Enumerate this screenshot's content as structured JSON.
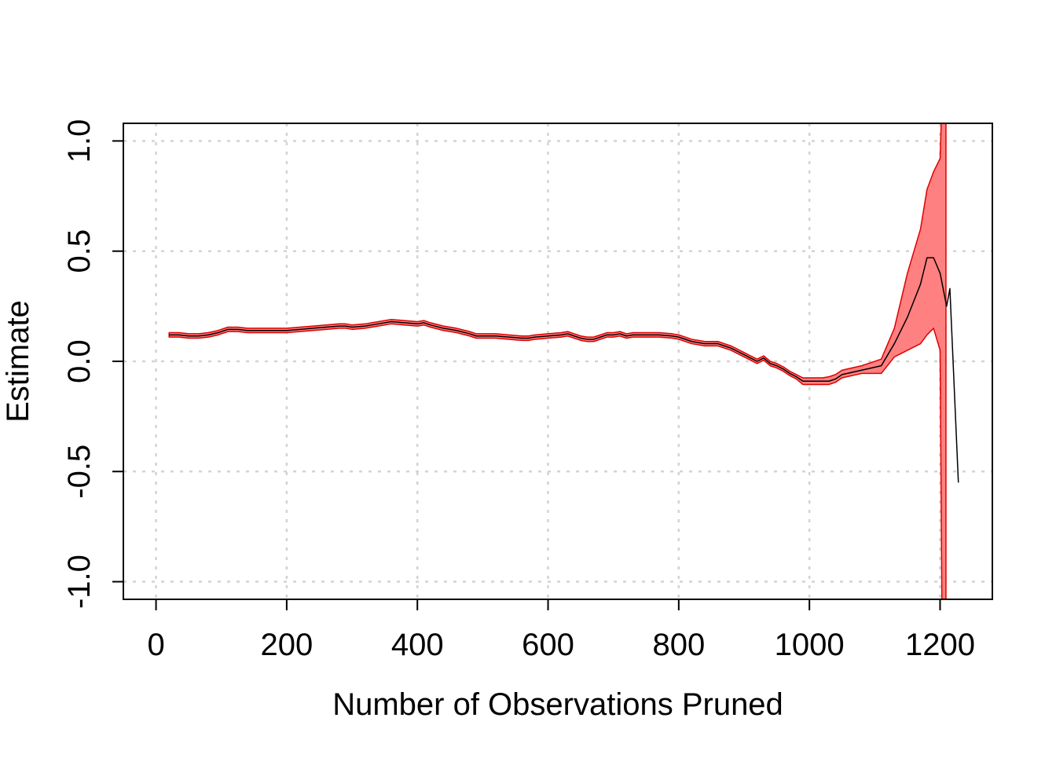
{
  "chart_data": {
    "type": "line",
    "title": "",
    "xlabel": "Number of Observations Pruned",
    "ylabel": "Estimate",
    "xlim": [
      -50,
      1280
    ],
    "ylim": [
      -1.08,
      1.08
    ],
    "x_ticks": [
      0,
      200,
      400,
      600,
      800,
      1000,
      1200
    ],
    "x_tick_labels": [
      "0",
      "200",
      "400",
      "600",
      "800",
      "1000",
      "1200"
    ],
    "y_ticks": [
      -1.0,
      -0.5,
      0.0,
      0.5,
      1.0
    ],
    "y_tick_labels": [
      "-1.0",
      "-0.5",
      "0.0",
      "0.5",
      "1.0"
    ],
    "grid": true,
    "colors": {
      "band": "#ff8080",
      "band_edge": "#e00000",
      "line": "#000000"
    },
    "series": [
      {
        "x": [
          20,
          35,
          50,
          65,
          80,
          95,
          110,
          125,
          140,
          160,
          180,
          200,
          220,
          240,
          260,
          280,
          290,
          300,
          320,
          340,
          360,
          380,
          400,
          410,
          420,
          440,
          460,
          480,
          490,
          500,
          520,
          540,
          560,
          570,
          580,
          600,
          620,
          630,
          640,
          650,
          660,
          670,
          680,
          690,
          700,
          710,
          720,
          730,
          750,
          770,
          790,
          800,
          820,
          840,
          860,
          870,
          880,
          890,
          900,
          910,
          920,
          930,
          940,
          950,
          960,
          970,
          980,
          990,
          1000,
          1020,
          1030,
          1040,
          1050,
          1080,
          1110,
          1130,
          1150,
          1170,
          1180,
          1190,
          1200,
          1210,
          1215,
          1228
        ],
        "y": [
          0.12,
          0.12,
          0.115,
          0.115,
          0.12,
          0.13,
          0.145,
          0.145,
          0.14,
          0.14,
          0.14,
          0.14,
          0.145,
          0.15,
          0.155,
          0.16,
          0.16,
          0.155,
          0.16,
          0.17,
          0.18,
          0.175,
          0.17,
          0.175,
          0.165,
          0.15,
          0.14,
          0.125,
          0.115,
          0.115,
          0.115,
          0.11,
          0.105,
          0.105,
          0.11,
          0.115,
          0.12,
          0.125,
          0.115,
          0.105,
          0.1,
          0.1,
          0.11,
          0.12,
          0.12,
          0.125,
          0.115,
          0.12,
          0.12,
          0.12,
          0.115,
          0.11,
          0.09,
          0.08,
          0.08,
          0.07,
          0.06,
          0.045,
          0.03,
          0.015,
          0.0,
          0.015,
          -0.01,
          -0.02,
          -0.035,
          -0.055,
          -0.07,
          -0.09,
          -0.09,
          -0.09,
          -0.09,
          -0.08,
          -0.06,
          -0.04,
          -0.02,
          0.08,
          0.2,
          0.35,
          0.47,
          0.47,
          0.4,
          0.25,
          0.33,
          -0.55
        ]
      }
    ],
    "band": {
      "x": [
        20,
        35,
        50,
        65,
        80,
        95,
        110,
        125,
        140,
        160,
        180,
        200,
        220,
        240,
        260,
        280,
        290,
        300,
        320,
        340,
        360,
        380,
        400,
        410,
        420,
        440,
        460,
        480,
        490,
        500,
        520,
        540,
        560,
        570,
        580,
        600,
        620,
        630,
        640,
        650,
        660,
        670,
        680,
        690,
        700,
        710,
        720,
        730,
        750,
        770,
        790,
        800,
        820,
        840,
        860,
        870,
        880,
        890,
        900,
        910,
        920,
        930,
        940,
        950,
        960,
        970,
        980,
        990,
        1000,
        1020,
        1030,
        1040,
        1050,
        1080,
        1110,
        1130,
        1150,
        1170,
        1180,
        1190,
        1200,
        1203,
        1206,
        1209
      ],
      "upper": [
        0.13,
        0.13,
        0.125,
        0.125,
        0.13,
        0.14,
        0.155,
        0.155,
        0.15,
        0.15,
        0.15,
        0.15,
        0.155,
        0.16,
        0.165,
        0.17,
        0.17,
        0.165,
        0.17,
        0.18,
        0.19,
        0.185,
        0.18,
        0.185,
        0.175,
        0.16,
        0.15,
        0.135,
        0.125,
        0.125,
        0.125,
        0.12,
        0.115,
        0.115,
        0.12,
        0.125,
        0.13,
        0.135,
        0.125,
        0.115,
        0.11,
        0.11,
        0.12,
        0.13,
        0.13,
        0.135,
        0.125,
        0.13,
        0.13,
        0.13,
        0.125,
        0.12,
        0.1,
        0.09,
        0.09,
        0.08,
        0.07,
        0.055,
        0.04,
        0.025,
        0.01,
        0.025,
        0.0,
        -0.01,
        -0.025,
        -0.045,
        -0.06,
        -0.075,
        -0.075,
        -0.075,
        -0.07,
        -0.06,
        -0.04,
        -0.02,
        0.01,
        0.15,
        0.4,
        0.6,
        0.78,
        0.86,
        0.92,
        1.2,
        1.2,
        1.2
      ],
      "lower": [
        0.11,
        0.11,
        0.105,
        0.105,
        0.11,
        0.12,
        0.135,
        0.135,
        0.13,
        0.13,
        0.13,
        0.13,
        0.135,
        0.14,
        0.145,
        0.15,
        0.15,
        0.145,
        0.15,
        0.16,
        0.17,
        0.165,
        0.16,
        0.165,
        0.155,
        0.14,
        0.13,
        0.115,
        0.105,
        0.105,
        0.105,
        0.1,
        0.095,
        0.095,
        0.1,
        0.105,
        0.11,
        0.115,
        0.105,
        0.095,
        0.09,
        0.09,
        0.1,
        0.11,
        0.11,
        0.115,
        0.105,
        0.11,
        0.11,
        0.11,
        0.105,
        0.1,
        0.08,
        0.07,
        0.07,
        0.06,
        0.05,
        0.035,
        0.02,
        0.005,
        -0.01,
        0.005,
        -0.02,
        -0.03,
        -0.045,
        -0.065,
        -0.08,
        -0.105,
        -0.105,
        -0.105,
        -0.105,
        -0.095,
        -0.075,
        -0.055,
        -0.055,
        0.02,
        0.05,
        0.08,
        0.12,
        0.15,
        0.05,
        -1.2,
        -1.2,
        -1.2
      ]
    }
  }
}
